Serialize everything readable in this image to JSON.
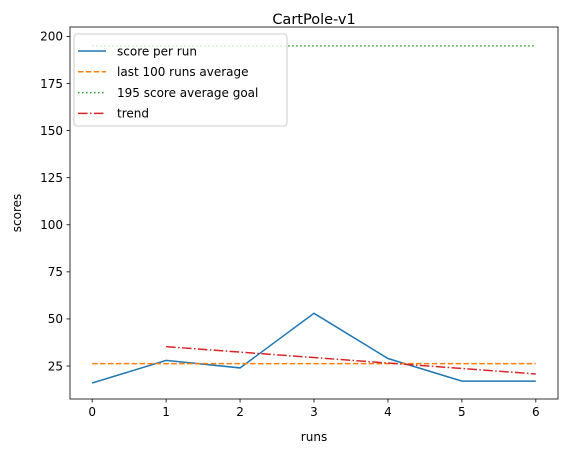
{
  "chart_data": {
    "type": "line",
    "title": "CartPole-v1",
    "xlabel": "runs",
    "ylabel": "scores",
    "xlim": [
      -0.3,
      6.3
    ],
    "ylim": [
      7.5,
      205
    ],
    "x_ticks": [
      0,
      1,
      2,
      3,
      4,
      5,
      6
    ],
    "y_ticks": [
      25,
      50,
      75,
      100,
      125,
      150,
      175,
      200
    ],
    "grid": false,
    "legend_position": "top-left",
    "series": [
      {
        "name": "score per run",
        "style": "solid",
        "color": "#1f77b4",
        "x": [
          0,
          1,
          2,
          3,
          4,
          5,
          6
        ],
        "values": [
          16,
          28,
          24,
          53,
          29,
          17,
          17
        ]
      },
      {
        "name": "last 100 runs average",
        "style": "dashed",
        "color": "#ff7f0e",
        "x": [
          0,
          6
        ],
        "values": [
          26.3,
          26.3
        ]
      },
      {
        "name": "195 score average goal",
        "style": "dotted",
        "color": "#2ca02c",
        "x": [
          0,
          6
        ],
        "values": [
          195,
          195
        ]
      },
      {
        "name": "trend",
        "style": "dashdot",
        "color": "#d62728",
        "x": [
          1,
          6
        ],
        "values": [
          35.3,
          20.8
        ]
      }
    ]
  }
}
